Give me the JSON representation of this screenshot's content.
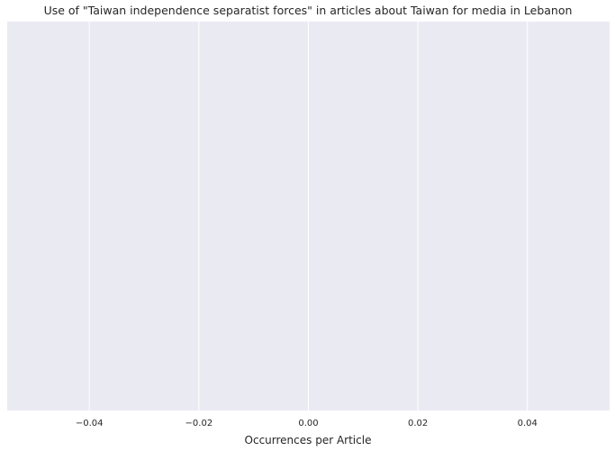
{
  "chart_data": {
    "type": "bar",
    "title": "Use of \"Taiwan independence separatist forces\" in articles about Taiwan for media in Lebanon",
    "xlabel": "Occurrences per Article",
    "ylabel": "",
    "categories": [],
    "values": [],
    "xlim": [
      -0.055,
      0.055
    ],
    "x_ticks": [
      -0.04,
      -0.02,
      0.0,
      0.02,
      0.04
    ],
    "x_tick_labels": [
      "−0.04",
      "−0.02",
      "0.00",
      "0.02",
      "0.04"
    ],
    "grid": true,
    "orientation": "horizontal",
    "colors": {
      "plot_background": "#EAEAF2",
      "grid": "#FFFFFF",
      "text": "#262626"
    }
  }
}
